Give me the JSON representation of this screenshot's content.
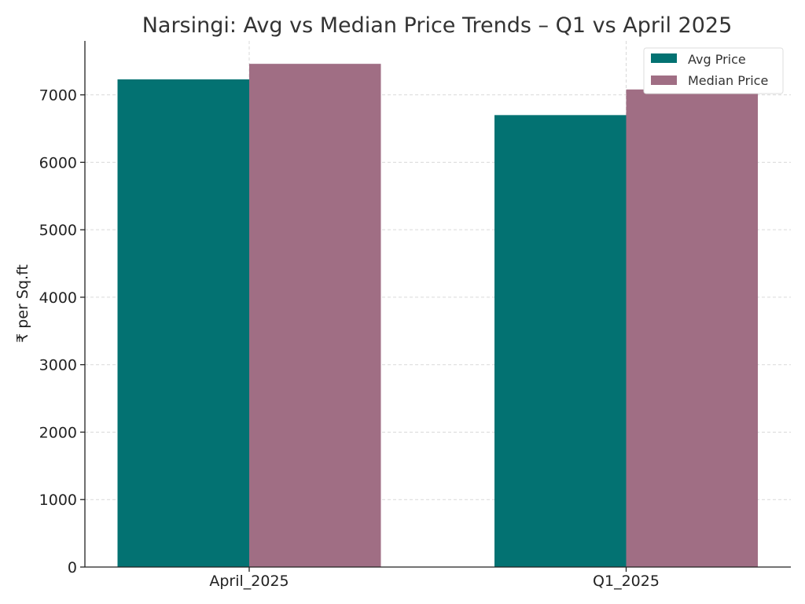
{
  "chart_data": {
    "type": "bar",
    "title": "Narsingi: Avg vs Median Price Trends – Q1 vs April 2025",
    "xlabel": "",
    "ylabel": "₹ per Sq.ft",
    "categories": [
      "April_2025",
      "Q1_2025"
    ],
    "series": [
      {
        "name": "Avg Price",
        "color": "#037272",
        "values": [
          7230,
          6700
        ]
      },
      {
        "name": "Median Price",
        "color": "#a06e84",
        "values": [
          7460,
          7080
        ]
      }
    ],
    "ylim": [
      0,
      7800
    ],
    "yticks": [
      0,
      1000,
      2000,
      3000,
      4000,
      5000,
      6000,
      7000
    ],
    "grid": true,
    "legend_position": "top-right"
  }
}
